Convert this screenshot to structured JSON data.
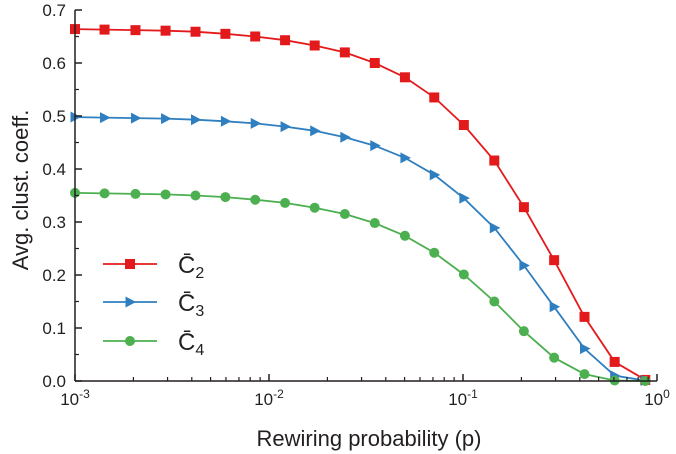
{
  "chart_data": {
    "type": "line",
    "xlabel": "Rewiring probability (p)",
    "ylabel": "Avg. clust. coeff.",
    "xscale": "log",
    "xlim": [
      0.001,
      1
    ],
    "ylim": [
      0,
      0.7
    ],
    "grid": false,
    "legend_position": "lower-left",
    "xticks": [
      {
        "value": 0.001,
        "base": "10",
        "exp": "-3"
      },
      {
        "value": 0.01,
        "base": "10",
        "exp": "-2"
      },
      {
        "value": 0.1,
        "base": "10",
        "exp": "-1"
      },
      {
        "value": 1,
        "base": "10",
        "exp": "0"
      }
    ],
    "yticks": [
      {
        "value": 0.0,
        "label": "0.0"
      },
      {
        "value": 0.1,
        "label": "0.1"
      },
      {
        "value": 0.2,
        "label": "0.2"
      },
      {
        "value": 0.3,
        "label": "0.3"
      },
      {
        "value": 0.4,
        "label": "0.4"
      },
      {
        "value": 0.5,
        "label": "0.5"
      },
      {
        "value": 0.6,
        "label": "0.6"
      },
      {
        "value": 0.7,
        "label": "0.7"
      }
    ],
    "x": [
      0.001,
      0.00142,
      0.00205,
      0.00293,
      0.00418,
      0.00596,
      0.00849,
      0.0121,
      0.0172,
      0.0246,
      0.0351,
      0.0502,
      0.0711,
      0.101,
      0.145,
      0.206,
      0.295,
      0.423,
      0.605,
      0.87
    ],
    "series": [
      {
        "name": "C̄",
        "subscript": "2",
        "color": "#e31a1c",
        "marker": "square",
        "values": [
          0.664,
          0.663,
          0.662,
          0.661,
          0.659,
          0.655,
          0.65,
          0.643,
          0.633,
          0.62,
          0.6,
          0.573,
          0.535,
          0.483,
          0.416,
          0.328,
          0.228,
          0.121,
          0.036,
          0.002
        ]
      },
      {
        "name": "C̄",
        "subscript": "3",
        "color": "#2f7fc0",
        "marker": "triangle-right",
        "values": [
          0.498,
          0.497,
          0.496,
          0.495,
          0.493,
          0.49,
          0.486,
          0.48,
          0.472,
          0.46,
          0.444,
          0.421,
          0.389,
          0.345,
          0.289,
          0.218,
          0.14,
          0.061,
          0.01,
          0.001
        ]
      },
      {
        "name": "C̄",
        "subscript": "4",
        "color": "#4caf50",
        "marker": "circle",
        "values": [
          0.355,
          0.354,
          0.353,
          0.352,
          0.35,
          0.347,
          0.342,
          0.336,
          0.327,
          0.315,
          0.298,
          0.274,
          0.242,
          0.201,
          0.15,
          0.094,
          0.044,
          0.013,
          0.001,
          0.0
        ]
      }
    ]
  }
}
